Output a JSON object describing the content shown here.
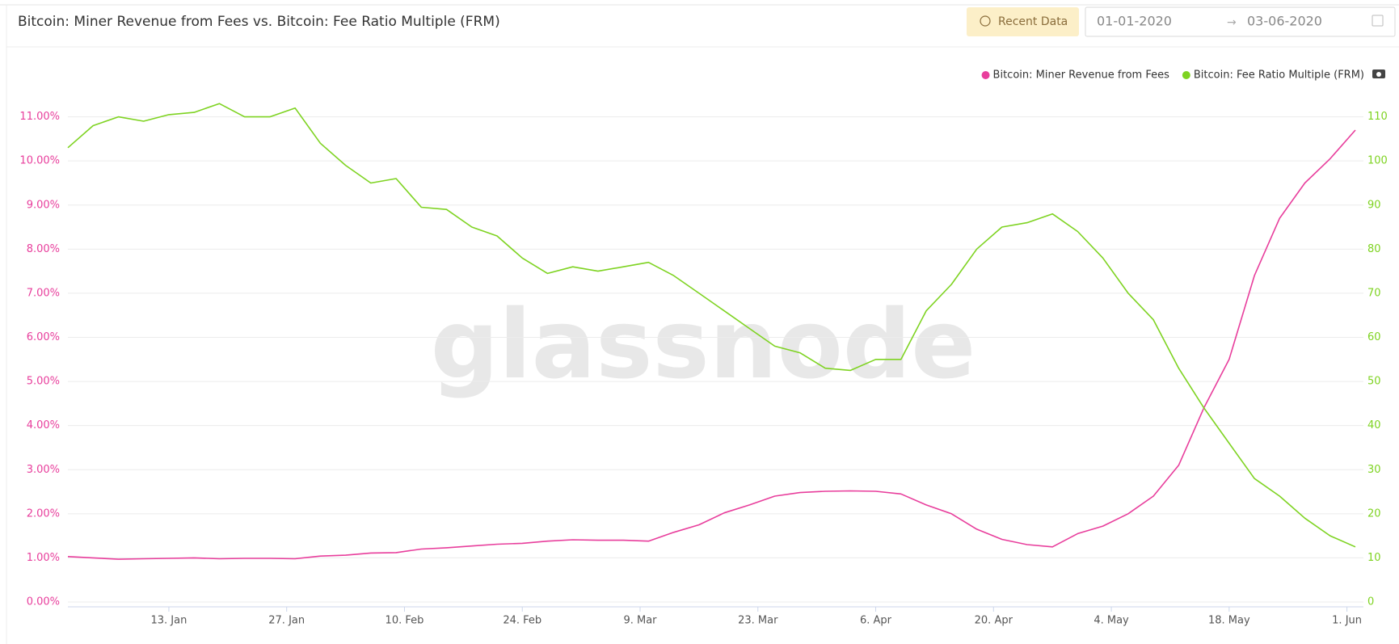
{
  "chart_data": {
    "type": "line",
    "title": "Bitcoin: Miner Revenue from Fees vs. Bitcoin: Fee Ratio Multiple (FRM)",
    "x": [
      "2020-01-01",
      "2020-01-04",
      "2020-01-07",
      "2020-01-10",
      "2020-01-13",
      "2020-01-16",
      "2020-01-19",
      "2020-01-22",
      "2020-01-25",
      "2020-01-28",
      "2020-01-31",
      "2020-02-03",
      "2020-02-06",
      "2020-02-09",
      "2020-02-12",
      "2020-02-15",
      "2020-02-18",
      "2020-02-21",
      "2020-02-24",
      "2020-02-27",
      "2020-03-01",
      "2020-03-04",
      "2020-03-07",
      "2020-03-10",
      "2020-03-13",
      "2020-03-16",
      "2020-03-19",
      "2020-03-22",
      "2020-03-25",
      "2020-03-28",
      "2020-03-31",
      "2020-04-03",
      "2020-04-06",
      "2020-04-09",
      "2020-04-12",
      "2020-04-15",
      "2020-04-18",
      "2020-04-21",
      "2020-04-24",
      "2020-04-27",
      "2020-04-30",
      "2020-05-03",
      "2020-05-06",
      "2020-05-09",
      "2020-05-12",
      "2020-05-15",
      "2020-05-18",
      "2020-05-21",
      "2020-05-24",
      "2020-05-27",
      "2020-05-30",
      "2020-06-02"
    ],
    "series": [
      {
        "name": "Bitcoin: Miner Revenue from Fees",
        "color": "#e83e9c",
        "values": [
          1.03,
          1.0,
          0.97,
          0.98,
          0.99,
          1.0,
          0.98,
          0.99,
          0.99,
          0.98,
          1.04,
          1.06,
          1.11,
          1.12,
          1.2,
          1.23,
          1.27,
          1.31,
          1.33,
          1.38,
          1.41,
          1.4,
          1.4,
          1.38,
          1.58,
          1.75,
          2.02,
          2.2,
          2.4,
          2.48,
          2.51,
          2.52,
          2.51,
          2.45,
          2.2,
          2.0,
          1.65,
          1.42,
          1.3,
          1.25,
          1.55,
          1.72,
          2.0,
          2.4,
          3.1,
          4.4,
          5.5,
          7.4,
          8.7,
          9.5,
          10.05,
          10.7
        ]
      },
      {
        "name": "Bitcoin: Fee Ratio Multiple (FRM)",
        "color": "#7ed321",
        "axis": "y2",
        "values": [
          103,
          108,
          110,
          109,
          110.5,
          111,
          113,
          110,
          110,
          112,
          104,
          99,
          95,
          96,
          89.5,
          89,
          85,
          83,
          78,
          74.5,
          76,
          75,
          76,
          77,
          74,
          70,
          66,
          62,
          58,
          56.5,
          53,
          52.5,
          55,
          55,
          66,
          72,
          80,
          85,
          86,
          88,
          84,
          78,
          70,
          64,
          53,
          44,
          36,
          28,
          24,
          19,
          15,
          12.5
        ]
      }
    ],
    "xlim": [
      "2020-01-01",
      "2020-06-02"
    ],
    "xticks": [
      {
        "value": "2020-01-13",
        "label": "13. Jan"
      },
      {
        "value": "2020-01-27",
        "label": "27. Jan"
      },
      {
        "value": "2020-02-10",
        "label": "10. Feb"
      },
      {
        "value": "2020-02-24",
        "label": "24. Feb"
      },
      {
        "value": "2020-03-09",
        "label": "9. Mar"
      },
      {
        "value": "2020-03-23",
        "label": "23. Mar"
      },
      {
        "value": "2020-04-06",
        "label": "6. Apr"
      },
      {
        "value": "2020-04-20",
        "label": "20. Apr"
      },
      {
        "value": "2020-05-04",
        "label": "4. May"
      },
      {
        "value": "2020-05-18",
        "label": "18. May"
      },
      {
        "value": "2020-06-01",
        "label": "1. Jun"
      }
    ],
    "ylim": [
      0,
      12
    ],
    "yticks": [
      {
        "value": 0,
        "label": "0.00%"
      },
      {
        "value": 1,
        "label": "1.00%"
      },
      {
        "value": 2,
        "label": "2.00%"
      },
      {
        "value": 3,
        "label": "3.00%"
      },
      {
        "value": 4,
        "label": "4.00%"
      },
      {
        "value": 5,
        "label": "5.00%"
      },
      {
        "value": 6,
        "label": "6.00%"
      },
      {
        "value": 7,
        "label": "7.00%"
      },
      {
        "value": 8,
        "label": "8.00%"
      },
      {
        "value": 9,
        "label": "9.00%"
      },
      {
        "value": 10,
        "label": "10.00%"
      },
      {
        "value": 11,
        "label": "11.00%"
      }
    ],
    "y2lim": [
      0,
      120
    ],
    "y2ticks": [
      0,
      10,
      20,
      30,
      40,
      50,
      60,
      70,
      80,
      90,
      100,
      110
    ],
    "grid": true,
    "legend": "top-right"
  },
  "controls": {
    "recent_data": "Recent Data",
    "date_from": "01-01-2020",
    "date_to": "03-06-2020"
  },
  "watermark": "glassnode"
}
